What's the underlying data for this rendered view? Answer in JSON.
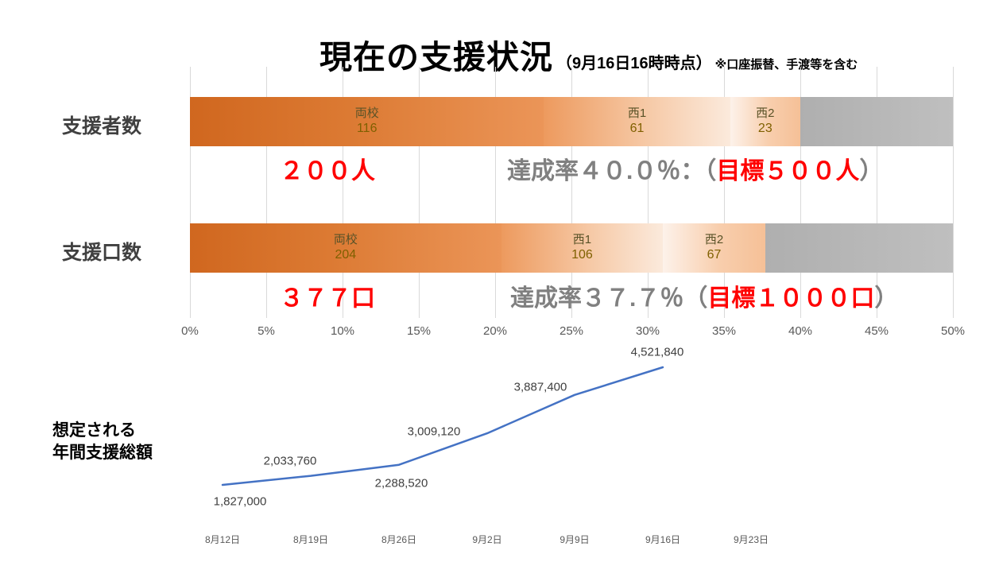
{
  "title": {
    "main": "現在の支援状況",
    "timestamp": "（9月16日16時時点）",
    "note": "※口座振替、手渡等を含む"
  },
  "bar_axis": {
    "ticks": [
      "0%",
      "5%",
      "10%",
      "15%",
      "20%",
      "25%",
      "30%",
      "35%",
      "40%",
      "45%",
      "50%"
    ],
    "min_pct": 0,
    "max_pct": 50,
    "grid": true
  },
  "chart_data": [
    {
      "type": "bar",
      "name": "supporters",
      "row_label": "支援者数",
      "target": 500,
      "axis_range": [
        0,
        50
      ],
      "segments": [
        {
          "label": "両校",
          "value": 116,
          "pct": 23.2
        },
        {
          "label": "西1",
          "value": 61,
          "pct": 12.2
        },
        {
          "label": "西2",
          "value": 23,
          "pct": 4.6
        }
      ],
      "total": 200,
      "total_text": "２００人",
      "achievement_prefix": "達成率４０.０％：（",
      "achievement_target": "目標５００人",
      "achievement_suffix": "）"
    },
    {
      "type": "bar",
      "name": "units",
      "row_label": "支援口数",
      "target": 1000,
      "axis_range": [
        0,
        50
      ],
      "segments": [
        {
          "label": "両校",
          "value": 204,
          "pct": 20.4
        },
        {
          "label": "西1",
          "value": 106,
          "pct": 10.6
        },
        {
          "label": "西2",
          "value": 67,
          "pct": 6.7
        }
      ],
      "total": 377,
      "total_text": "３７７口",
      "achievement_prefix": "達成率３７.７％（",
      "achievement_target": "目標１０００口",
      "achievement_suffix": "）"
    },
    {
      "type": "line",
      "name": "estimated-annual-total",
      "label_line1": "想定される",
      "label_line2": "年間支援総額",
      "categories": [
        "8月12日",
        "8月19日",
        "8月26日",
        "9月2日",
        "9月9日",
        "9月16日",
        "9月23日"
      ],
      "values": [
        1827000,
        2033760,
        2288520,
        3009120,
        3887400,
        4521840
      ],
      "labels": [
        "1,827,000",
        "2,033,760",
        "2,288,520",
        "3,009,120",
        "3,887,400",
        "4,521,840"
      ],
      "line_color": "#4472C4",
      "legend": "none",
      "grid": false
    }
  ],
  "colors": {
    "segment_main": "#DC7A33",
    "segment_west1": "#F6C9A6",
    "segment_west2": "#F8CEAD",
    "remainder_gray": "#B5B5B5",
    "accent_red": "#FF0000",
    "achievement_gray": "#808080",
    "axis_gray": "#595959",
    "line_blue": "#4472C4"
  }
}
